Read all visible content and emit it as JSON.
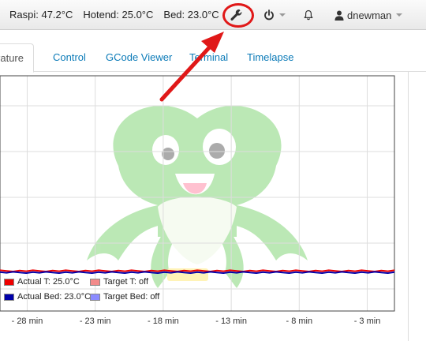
{
  "topbar": {
    "raspi": "Raspi: 47.2°C",
    "hotend": "Hotend: 25.0°C",
    "bed": "Bed: 23.0°C",
    "user": "dnewman"
  },
  "tabs": {
    "active": "Temperature",
    "items": [
      "Control",
      "GCode Viewer",
      "Terminal",
      "Timelapse"
    ]
  },
  "colors": {
    "actual_tool": "#ee0000",
    "target_tool": "#f28a8a",
    "actual_bed": "#0000aa",
    "target_bed": "#8b8bff",
    "annotation": "#e01818",
    "link": "#0c7bb8"
  },
  "legend": {
    "actual_tool": "Actual T: 25.0°C",
    "target_tool": "Target T: off",
    "actual_bed": "Actual Bed: 23.0°C",
    "target_bed": "Target Bed: off"
  },
  "chart_data": {
    "type": "line",
    "x_ticks": [
      "- 28 min",
      "- 23 min",
      "- 18 min",
      "- 13 min",
      "- 8 min",
      "- 3 min"
    ],
    "x_tick_values": [
      -28,
      -23,
      -18,
      -13,
      -8,
      -3
    ],
    "xlim": [
      -30,
      -1
    ],
    "grid": true,
    "legend_position": "bottom-left",
    "series": [
      {
        "name": "Actual T: 25.0°C",
        "color": "#ee0000",
        "values": [
          25.0,
          25.0
        ]
      },
      {
        "name": "Target T: off",
        "color": "#f28a8a",
        "values": []
      },
      {
        "name": "Actual Bed: 23.0°C",
        "color": "#0000aa",
        "values": [
          23.0,
          23.0
        ]
      },
      {
        "name": "Target Bed: off",
        "color": "#8b8bff",
        "values": []
      }
    ]
  }
}
